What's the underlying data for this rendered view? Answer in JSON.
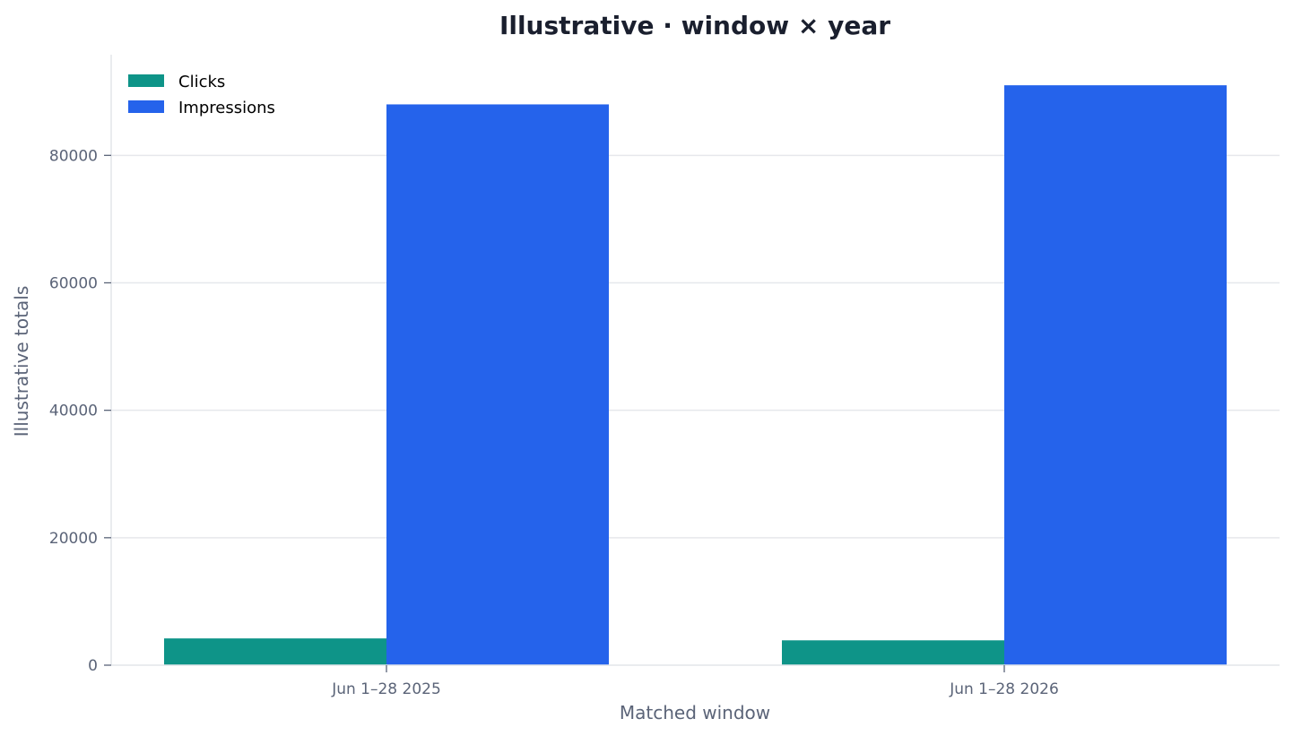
{
  "chart_data": {
    "type": "bar",
    "title": "Illustrative · window × year",
    "xlabel": "Matched window",
    "ylabel": "Illustrative totals",
    "categories": [
      "Jun 1–28 2025",
      "Jun 1–28 2026"
    ],
    "series": [
      {
        "name": "Clicks",
        "color": "#0e9488",
        "values": [
          4200,
          3900
        ]
      },
      {
        "name": "Impressions",
        "color": "#2563eb",
        "values": [
          88000,
          91000
        ]
      }
    ],
    "ylim": [
      0,
      95800
    ],
    "yticks": [
      0,
      20000,
      40000,
      60000,
      80000
    ],
    "ytick_labels": [
      "0",
      "20000",
      "40000",
      "60000",
      "80000"
    ],
    "grid": true,
    "legend_position": "top-left"
  }
}
